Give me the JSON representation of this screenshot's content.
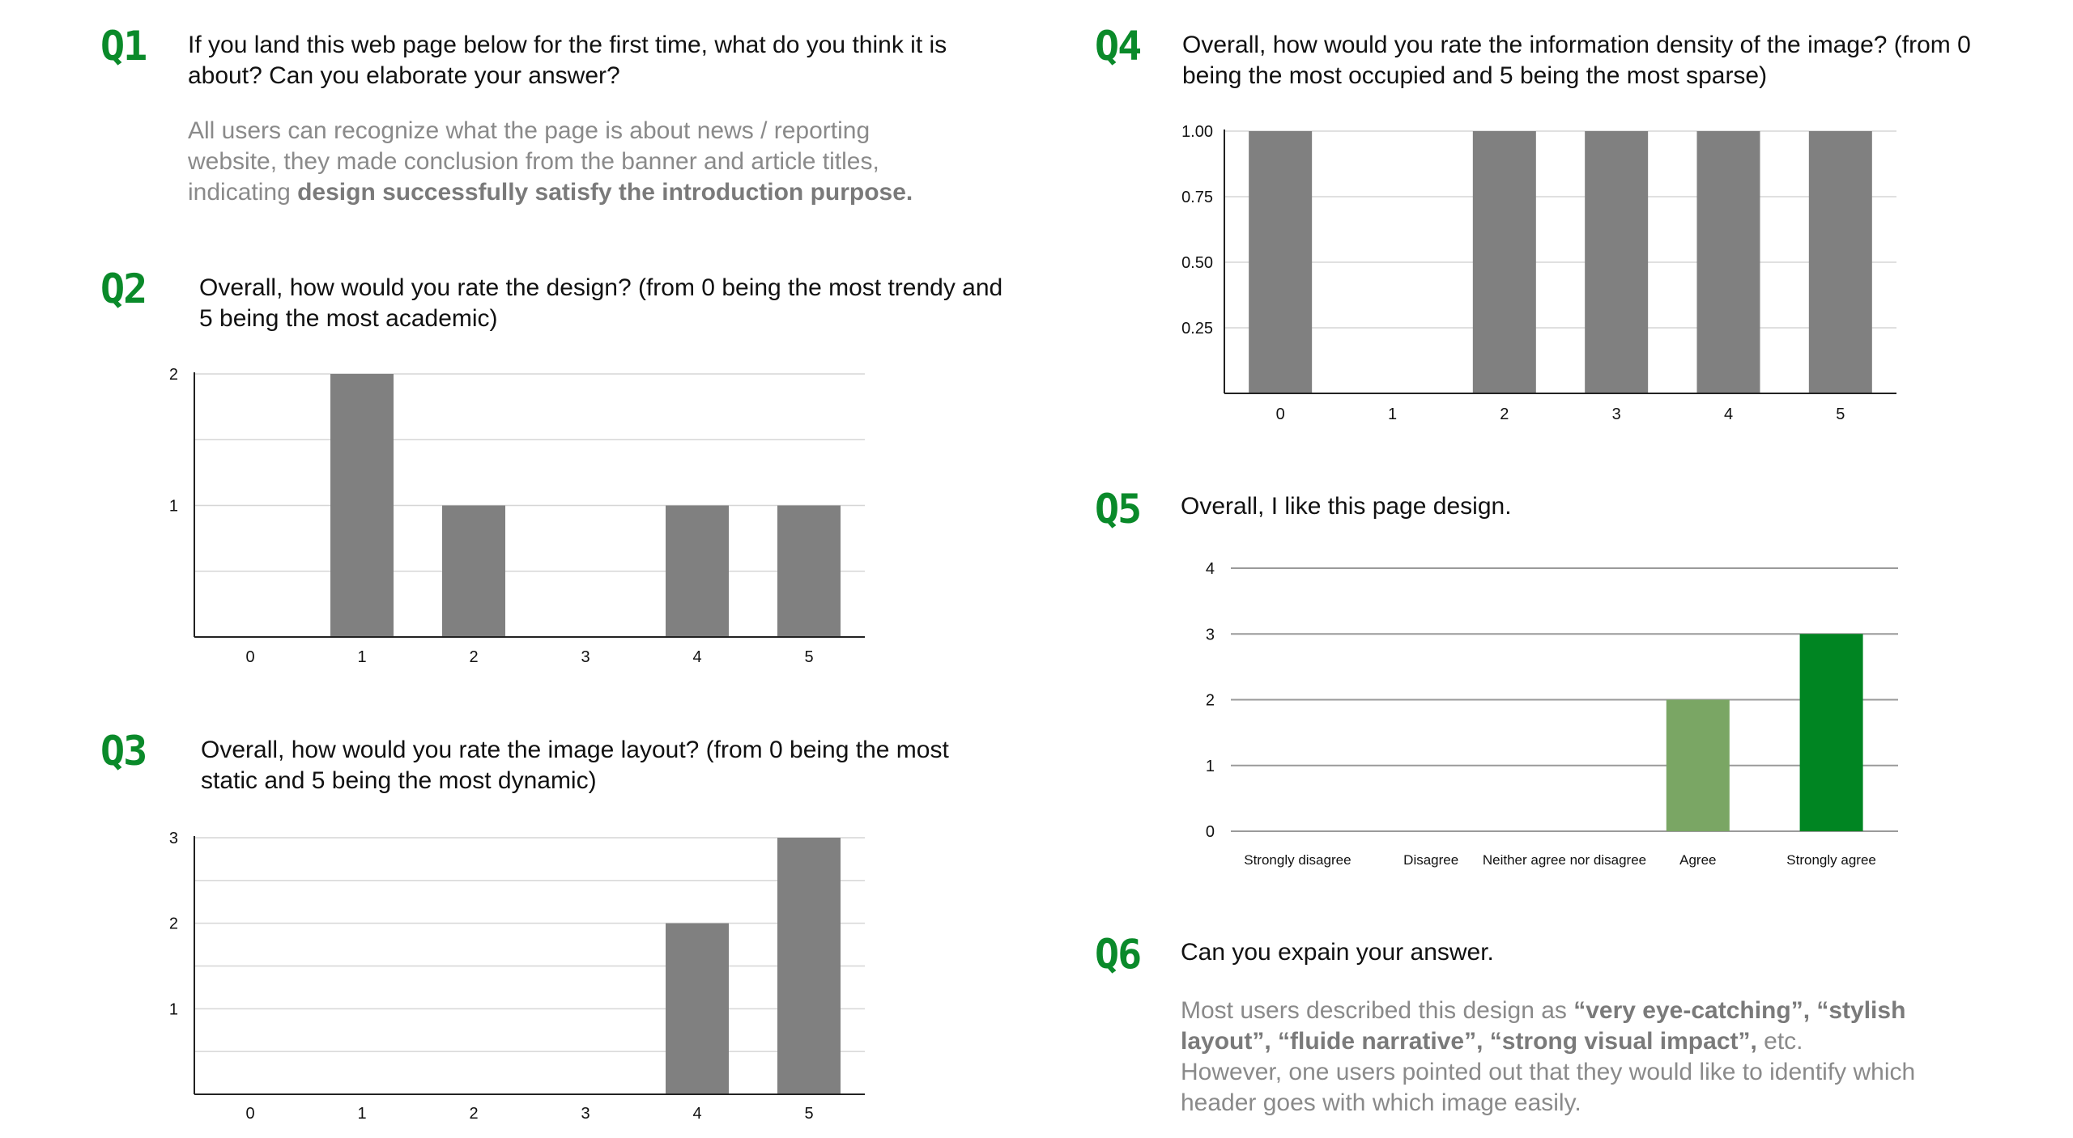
{
  "q1": {
    "num": "Q1",
    "question": "If you land this web page below for the first time, what do you think it is about? Can you elaborate your answer?",
    "answer_plain": "All users can recognize what the page is about news / reporting website, they made conclusion from the banner and article titles, indicating ",
    "answer_bold": "design successfully satisfy the introduction purpose."
  },
  "q2": {
    "num": "Q2",
    "question": "Overall, how would you rate the design? (from 0 being the most trendy and 5 being the most academic)"
  },
  "q3": {
    "num": "Q3",
    "question": "Overall, how would you rate the image layout? (from 0 being the most static and 5 being the most dynamic)"
  },
  "q4": {
    "num": "Q4",
    "question": "Overall, how would you rate the information density of the image? (from 0 being the most occupied and 5 being the most sparse)"
  },
  "q5": {
    "num": "Q5",
    "question": "Overall, I like this page design."
  },
  "q6": {
    "num": "Q6",
    "question": "Can you expain your answer.",
    "answer_p1": "Most users described this design as ",
    "answer_b1": "“very eye-catching”, “stylish layout”, “fluide narrative”, “strong visual impact”,",
    "answer_p2": " etc.",
    "answer_p3": "However,  one users pointed out that they would like to identify which header goes with which image easily."
  },
  "colors": {
    "accent": "#0a8a2a",
    "bar_gray": "#808080",
    "bar_light_green": "#7aa664",
    "bar_dark_green": "#008522"
  },
  "chart_data": [
    {
      "id": "q2",
      "type": "bar",
      "categories": [
        "0",
        "1",
        "2",
        "3",
        "4",
        "5"
      ],
      "values": [
        0,
        2,
        1,
        0,
        1,
        1
      ],
      "ylim": [
        0,
        2
      ],
      "yticks": [
        "1",
        "2"
      ],
      "grid": true
    },
    {
      "id": "q3",
      "type": "bar",
      "categories": [
        "0",
        "1",
        "2",
        "3",
        "4",
        "5"
      ],
      "values": [
        0,
        0,
        0,
        0,
        2,
        3
      ],
      "ylim": [
        0,
        3
      ],
      "yticks": [
        "1",
        "2",
        "3"
      ],
      "grid": true
    },
    {
      "id": "q4",
      "type": "bar",
      "categories": [
        "0",
        "1",
        "2",
        "3",
        "4",
        "5"
      ],
      "values": [
        1,
        0,
        1,
        1,
        1,
        1
      ],
      "ylim": [
        0,
        1
      ],
      "yticks": [
        "0.25",
        "0.50",
        "0.75",
        "1.00"
      ],
      "grid": true
    },
    {
      "id": "q5",
      "type": "bar",
      "categories": [
        "Strongly disagree",
        "Disagree",
        "Neither agree nor disagree",
        "Agree",
        "Strongly agree"
      ],
      "values": [
        0,
        0,
        0,
        2,
        3
      ],
      "ylim": [
        0,
        4
      ],
      "yticks": [
        "0",
        "1",
        "2",
        "3",
        "4"
      ],
      "grid": true,
      "bar_colors": [
        "#808080",
        "#808080",
        "#808080",
        "#7aa664",
        "#008522"
      ]
    }
  ]
}
